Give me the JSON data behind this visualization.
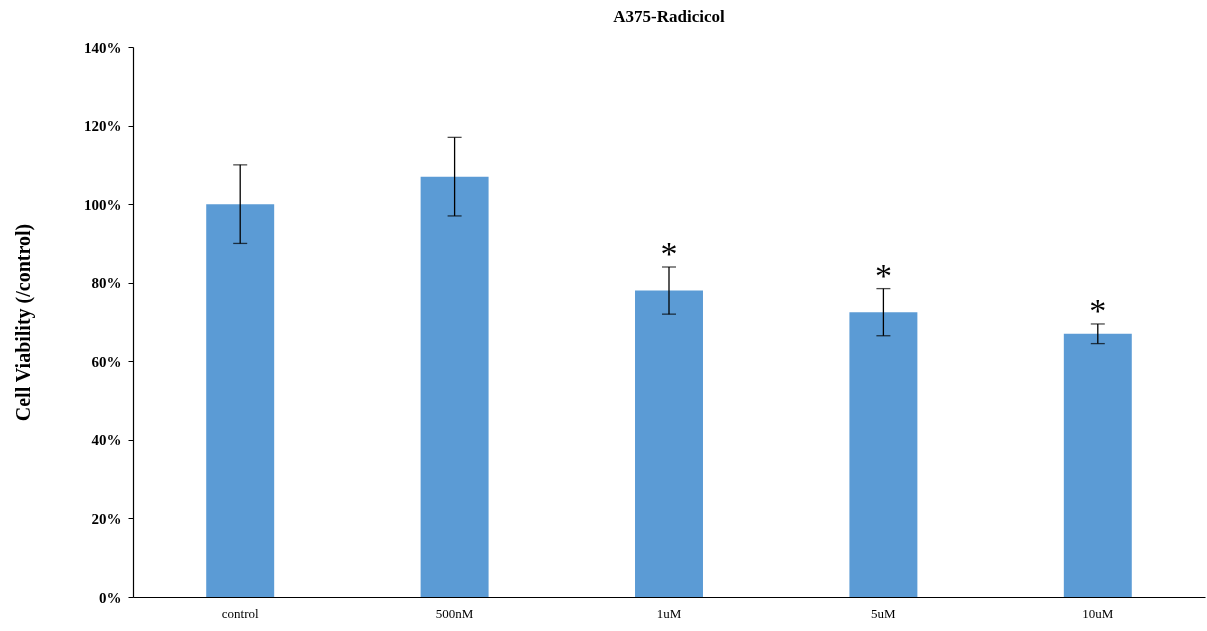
{
  "chart_data": {
    "type": "bar",
    "title": "A375-Radicicol",
    "ylabel": "Cell Viability (/control)",
    "categories": [
      "control",
      "500nM",
      "1uM",
      "5uM",
      "10uM"
    ],
    "values": [
      100,
      107,
      78,
      72.5,
      67
    ],
    "errors": [
      10,
      10,
      6,
      6,
      2.5
    ],
    "color": "#5b9bd5",
    "ylim": [
      0,
      140
    ],
    "yticks": [
      {
        "value": 0,
        "label": "0%"
      },
      {
        "value": 20,
        "label": "20%"
      },
      {
        "value": 40,
        "label": "40%"
      },
      {
        "value": 60,
        "label": "60%"
      },
      {
        "value": 80,
        "label": "80%"
      },
      {
        "value": 100,
        "label": "100%"
      },
      {
        "value": 120,
        "label": "120%"
      },
      {
        "value": 140,
        "label": "140%"
      }
    ],
    "annotations": [
      {
        "text": "*",
        "x": "1uM",
        "y": 84
      },
      {
        "text": "*",
        "x": "5uM",
        "y": 78.5
      },
      {
        "text": "*",
        "x": "10uM",
        "y": 69.5
      }
    ]
  }
}
